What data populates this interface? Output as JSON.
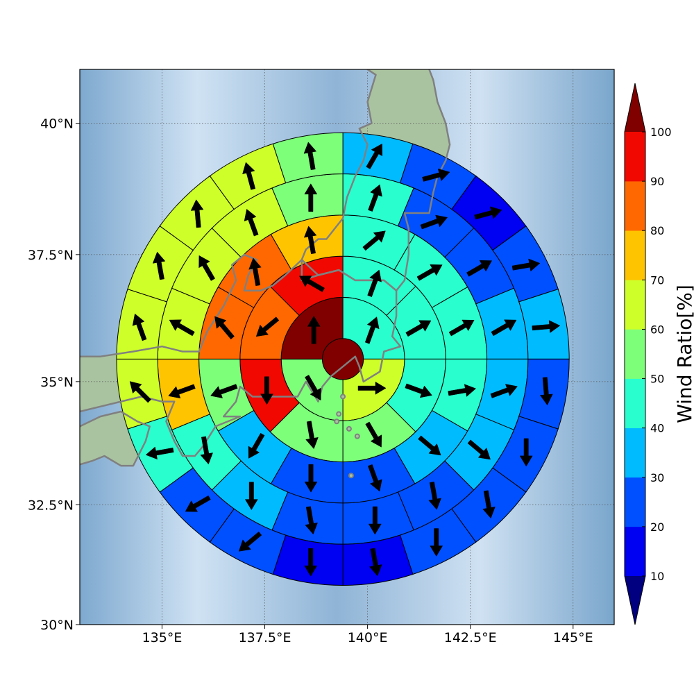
{
  "chart_data": {
    "type": "heatmap",
    "subtype": "polar-sector-wind-map",
    "xlabel": "",
    "ylabel": "",
    "x_range_lon": [
      133.0,
      146.0
    ],
    "y_range_lat": [
      30.0,
      41.0
    ],
    "x_ticks": [
      {
        "value": 135.0,
        "label": "135°E"
      },
      {
        "value": 137.5,
        "label": "137.5°E"
      },
      {
        "value": 140.0,
        "label": "140°E"
      },
      {
        "value": 142.5,
        "label": "142.5°E"
      },
      {
        "value": 145.0,
        "label": "145°E"
      }
    ],
    "y_ticks": [
      {
        "value": 30.0,
        "label": "30°N"
      },
      {
        "value": 32.5,
        "label": "32.5°N"
      },
      {
        "value": 35.0,
        "label": "35°N"
      },
      {
        "value": 37.5,
        "label": "37.5°N"
      },
      {
        "value": 40.0,
        "label": "40°N"
      }
    ],
    "grid": true,
    "center": {
      "lon": 139.4,
      "lat": 35.45
    },
    "ring_radii_km": [
      50,
      150,
      250,
      350,
      450,
      550
    ],
    "center_value": 100,
    "rings": [
      {
        "sectors": 4,
        "values": [
          48,
          62,
          58,
          100
        ]
      },
      {
        "sectors": 8,
        "values": [
          42,
          42,
          48,
          55,
          55,
          98,
          82,
          98
        ]
      },
      {
        "sectors": 12,
        "values": [
          42,
          42,
          42,
          45,
          35,
          22,
          25,
          35,
          55,
          82,
          88,
          75
        ]
      },
      {
        "sectors": 16,
        "values": [
          45,
          20,
          20,
          30,
          32,
          32,
          22,
          22,
          23,
          35,
          45,
          75,
          68,
          65,
          65,
          52
        ]
      },
      {
        "sectors": 20,
        "values": [
          35,
          22,
          18,
          22,
          32,
          22,
          22,
          22,
          22,
          15,
          15,
          20,
          22,
          45,
          62,
          62,
          62,
          65,
          62,
          52
        ]
      }
    ],
    "arrows_deg": [
      [
        [
          20,
          90,
          150,
          0
        ],
        [
          20,
          60,
          110,
          150,
          170,
          180,
          -130,
          -60
        ],
        [
          50,
          60,
          60,
          80,
          130,
          160,
          180,
          -150,
          -110,
          -40,
          -10,
          -10
        ],
        [
          20,
          70,
          60,
          60,
          70,
          130,
          170,
          180,
          170,
          180,
          170,
          -110,
          -60,
          -30,
          -20,
          0
        ],
        [
          30,
          75,
          75,
          80,
          85,
          175,
          180,
          170,
          180,
          170,
          180,
          -130,
          -120,
          -100,
          -45,
          -20,
          -10,
          -5,
          -15,
          -10
        ]
      ]
    ],
    "colorbar": {
      "title": "Wind Ratio[%]",
      "levels": [
        10,
        20,
        30,
        40,
        50,
        60,
        70,
        80,
        90,
        100
      ],
      "extend": "both",
      "colors": [
        "#000080",
        "#0000f2",
        "#0050ff",
        "#00bcff",
        "#29ffce",
        "#7dff7a",
        "#ceff29",
        "#ffc400",
        "#ff6800",
        "#f10800",
        "#800000"
      ]
    },
    "colors": {
      "coast": "#808080",
      "ocean_light": "#cfe1f2",
      "ocean_dark": "#7aa6cc",
      "land": "#a9c3a0"
    }
  }
}
